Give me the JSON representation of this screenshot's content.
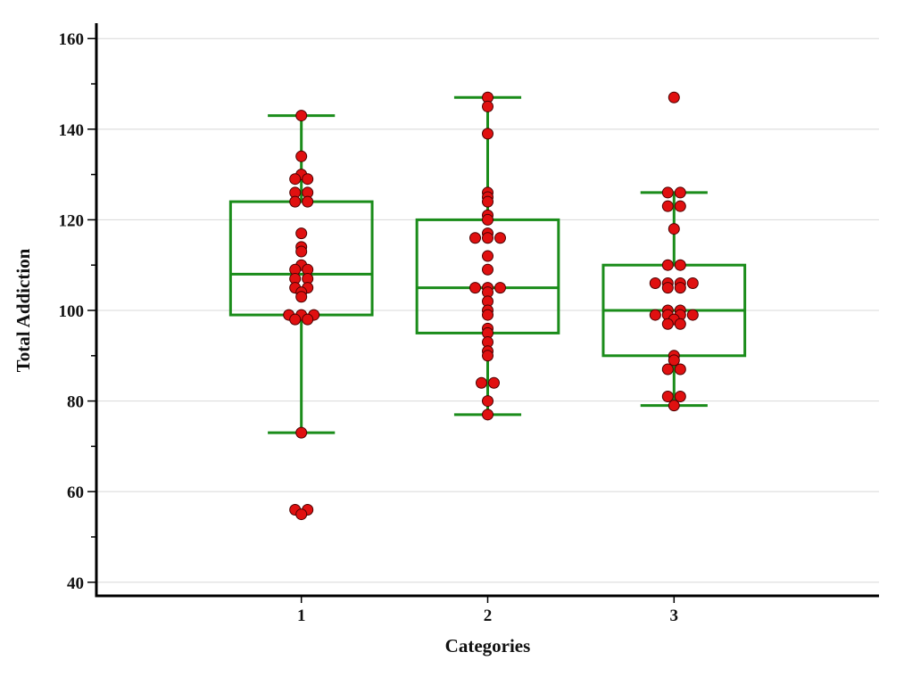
{
  "chart_data": {
    "type": "box",
    "xlabel": "Categories",
    "ylabel": "Total Addiction",
    "ylim": [
      37,
      163
    ],
    "xlim": [
      -0.1,
      4.1
    ],
    "yticks": [
      40,
      60,
      80,
      100,
      120,
      140,
      160
    ],
    "y_minor_step": 10,
    "categories": [
      "1",
      "2",
      "3"
    ],
    "grid": true,
    "legend": "none",
    "colors": {
      "box": "#1a8c1a",
      "point": "#e01010",
      "point_edge": "#4a0000",
      "grid": "#d8d8d8",
      "axis": "#000000"
    },
    "boxes": [
      {
        "category": "1",
        "whisker_low": 73,
        "q1": 99,
        "median": 108,
        "q3": 124,
        "whisker_high": 143
      },
      {
        "category": "2",
        "whisker_low": 77,
        "q1": 95,
        "median": 105,
        "q3": 120,
        "whisker_high": 147
      },
      {
        "category": "3",
        "whisker_low": 79,
        "q1": 90,
        "median": 100,
        "q3": 110,
        "whisker_high": 126
      }
    ],
    "points": [
      {
        "category": "1",
        "values": [
          143,
          134,
          130,
          129,
          129,
          126,
          126,
          124,
          124,
          117,
          114,
          113,
          110,
          109,
          109,
          107,
          107,
          105,
          105,
          104,
          103,
          99,
          99,
          99,
          98,
          98,
          73,
          56,
          56,
          55
        ]
      },
      {
        "category": "2",
        "values": [
          147,
          145,
          139,
          126,
          125,
          124,
          121,
          120,
          117,
          116,
          116,
          116,
          112,
          109,
          105,
          105,
          105,
          104,
          102,
          100,
          99,
          96,
          95,
          93,
          91,
          90,
          84,
          84,
          80,
          77
        ]
      },
      {
        "category": "3",
        "values": [
          147,
          126,
          126,
          123,
          123,
          118,
          110,
          110,
          106,
          106,
          106,
          106,
          105,
          105,
          100,
          100,
          99,
          99,
          99,
          99,
          98,
          97,
          97,
          90,
          89,
          87,
          87,
          81,
          81,
          79
        ]
      }
    ]
  }
}
